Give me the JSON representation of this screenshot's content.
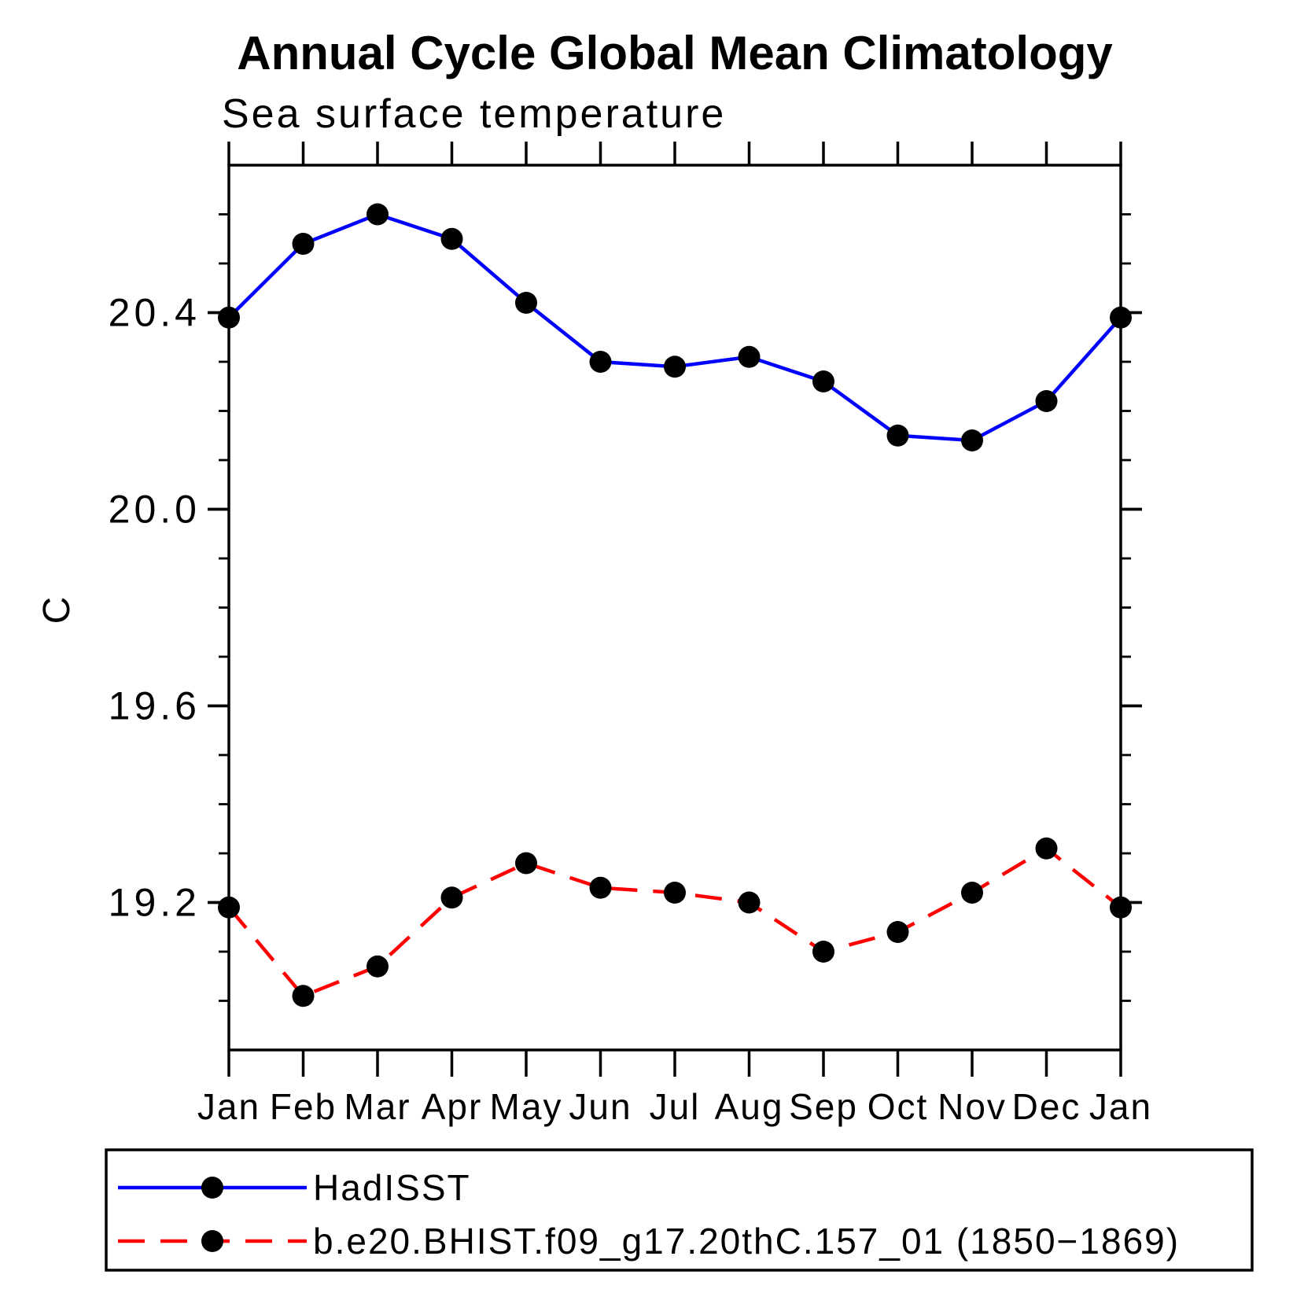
{
  "chart_data": {
    "type": "line",
    "title": "Annual Cycle Global Mean Climatology",
    "subtitle": "Sea surface temperature",
    "xlabel": "",
    "ylabel": "C",
    "categories": [
      "Jan",
      "Feb",
      "Mar",
      "Apr",
      "May",
      "Jun",
      "Jul",
      "Aug",
      "Sep",
      "Oct",
      "Nov",
      "Dec",
      "Jan"
    ],
    "series": [
      {
        "name": "HadISST",
        "color": "#0000ff",
        "line_style": "solid",
        "marker": "filled-circle",
        "marker_color": "#000000",
        "values": [
          20.39,
          20.54,
          20.6,
          20.55,
          20.42,
          20.3,
          20.29,
          20.31,
          20.26,
          20.15,
          20.14,
          20.22,
          20.39
        ]
      },
      {
        "name": "b.e20.BHIST.f09_g17.20thC.157_01 (1850−1869)",
        "color": "#ff0000",
        "line_style": "dashed",
        "marker": "filled-circle",
        "marker_color": "#000000",
        "values": [
          19.19,
          19.01,
          19.07,
          19.21,
          19.28,
          19.23,
          19.22,
          19.2,
          19.1,
          19.14,
          19.22,
          19.31,
          19.19
        ]
      }
    ],
    "ylim": [
      18.9,
      20.7
    ],
    "y_major_ticks": [
      19.2,
      19.6,
      20.0,
      20.4
    ],
    "y_tick_labels": [
      "19.2",
      "19.6",
      "20.0",
      "20.4"
    ],
    "y_minor_tick_interval": 0.1,
    "grid": false,
    "legend_position": "bottom-left-box",
    "frame_color": "#000000",
    "background_color": "#ffffff"
  }
}
